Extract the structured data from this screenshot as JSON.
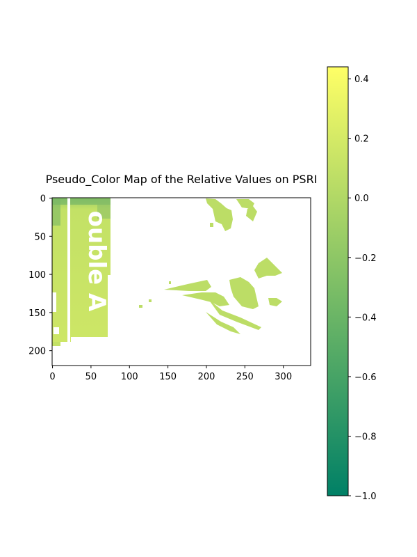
{
  "chart_data": {
    "type": "heatmap",
    "title": "Pseudo_Color Map of the Relative Values on PSRI",
    "xlabel": "",
    "ylabel": "",
    "xlim": [
      0,
      336
    ],
    "ylim": [
      220,
      0
    ],
    "x_ticks": [
      "0",
      "50",
      "100",
      "150",
      "200",
      "250",
      "300"
    ],
    "y_ticks": [
      "0",
      "50",
      "100",
      "150",
      "200"
    ],
    "colormap": "summer",
    "colorbar": {
      "range": [
        -1.0,
        0.44
      ],
      "ticks": [
        "0.4",
        "0.2",
        "0.0",
        "−0.2",
        "−0.4",
        "−0.6",
        "−0.8",
        "−1.0"
      ],
      "colors": [
        "#008066",
        "#ffff66"
      ]
    },
    "regions": [
      {
        "name": "left-panel",
        "x": [
          0,
          76
        ],
        "y": [
          0,
          190
        ],
        "value_range": [
          -0.6,
          0.3
        ]
      },
      {
        "name": "top-cluster",
        "x": [
          200,
          265
        ],
        "y": [
          0,
          45
        ],
        "value": 0.0
      },
      {
        "name": "middle-cluster",
        "x": [
          150,
          300
        ],
        "y": [
          75,
          170
        ],
        "value": 0.0
      }
    ],
    "overlay_text": "ouble A",
    "grid": false
  }
}
